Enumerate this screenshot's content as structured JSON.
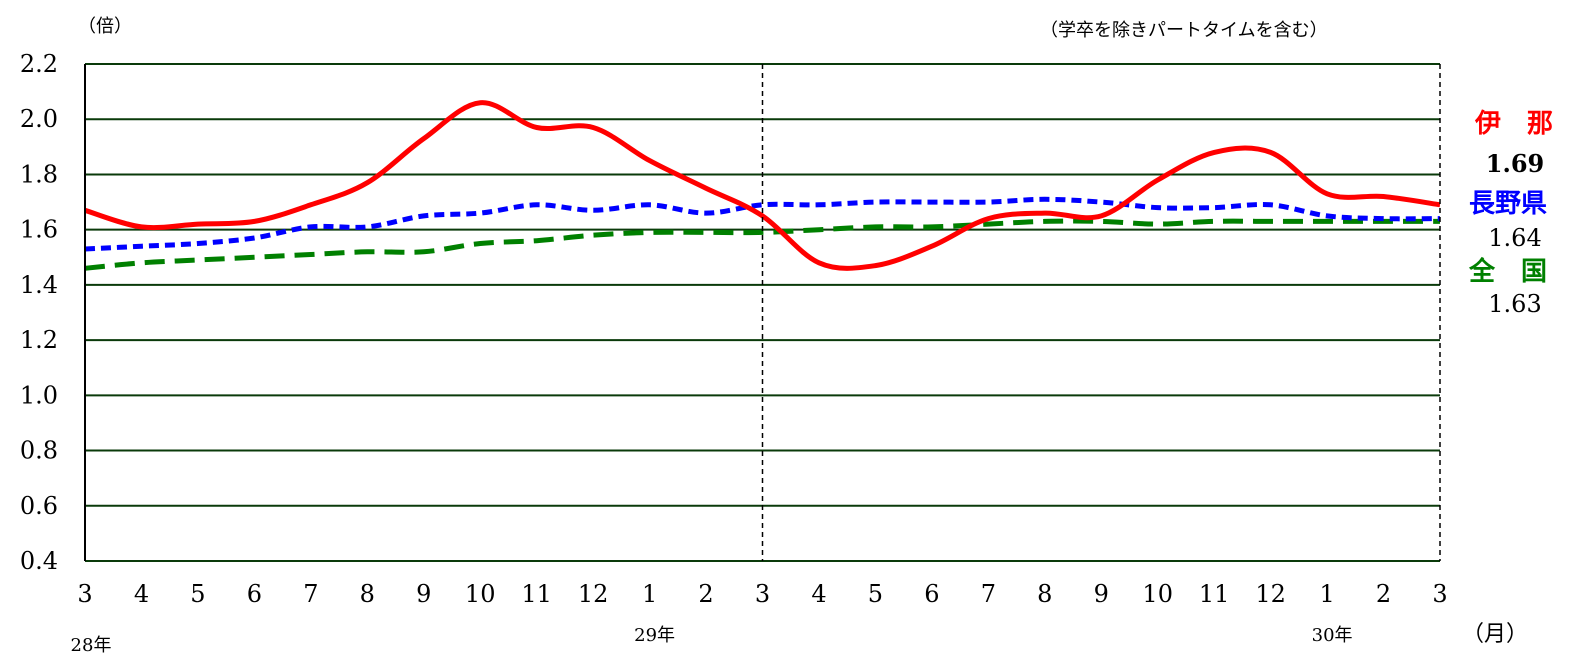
{
  "chart_data": {
    "type": "line",
    "y_unit": "（倍）",
    "note": "（学卒を除きパートタイムを含む）",
    "x_unit": "（月）",
    "x": [
      "3",
      "4",
      "5",
      "6",
      "7",
      "8",
      "9",
      "10",
      "11",
      "12",
      "1",
      "2",
      "3",
      "4",
      "5",
      "6",
      "7",
      "8",
      "9",
      "10",
      "11",
      "12",
      "1",
      "2",
      "3"
    ],
    "year_labels": [
      {
        "label": "28年",
        "index": 0
      },
      {
        "label": "29年",
        "index": 10
      },
      {
        "label": "30年",
        "index": 22
      }
    ],
    "ylim": [
      0.4,
      2.2
    ],
    "yticks": [
      "2.2",
      "2.0",
      "1.8",
      "1.6",
      "1.4",
      "1.2",
      "1.0",
      "0.8",
      "0.6",
      "0.4"
    ],
    "yticks_values": [
      2.2,
      2.0,
      1.8,
      1.6,
      1.4,
      1.2,
      1.0,
      0.8,
      0.6,
      0.4
    ],
    "grid": true,
    "divider_index": 12,
    "series": [
      {
        "name": "伊　那",
        "color": "#ff0000",
        "style": "solid",
        "latest": "1.69",
        "latest_color": "#000000",
        "values": [
          1.67,
          1.61,
          1.62,
          1.63,
          1.69,
          1.77,
          1.93,
          2.06,
          1.97,
          1.97,
          1.85,
          1.75,
          1.65,
          1.48,
          1.47,
          1.54,
          1.64,
          1.66,
          1.65,
          1.78,
          1.88,
          1.88,
          1.73,
          1.72,
          1.69
        ]
      },
      {
        "name": "長野県",
        "color": "#0000ff",
        "style": "dotted",
        "latest": "1.64",
        "latest_color": "#000000",
        "values": [
          1.53,
          1.54,
          1.55,
          1.57,
          1.61,
          1.61,
          1.65,
          1.66,
          1.69,
          1.67,
          1.69,
          1.66,
          1.69,
          1.69,
          1.7,
          1.7,
          1.7,
          1.71,
          1.7,
          1.68,
          1.68,
          1.69,
          1.65,
          1.64,
          1.64
        ]
      },
      {
        "name": "全　国",
        "color": "#008000",
        "style": "dashed",
        "latest": "1.63",
        "latest_color": "#000000",
        "values": [
          1.46,
          1.48,
          1.49,
          1.5,
          1.51,
          1.52,
          1.52,
          1.55,
          1.56,
          1.58,
          1.59,
          1.59,
          1.59,
          1.6,
          1.61,
          1.61,
          1.62,
          1.63,
          1.63,
          1.62,
          1.63,
          1.63,
          1.63,
          1.63,
          1.63
        ]
      }
    ]
  }
}
